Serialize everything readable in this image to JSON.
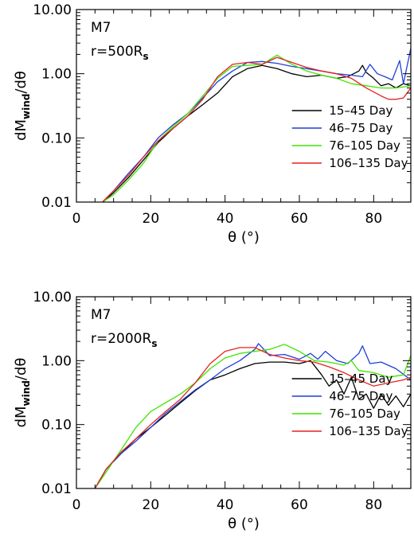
{
  "chart_data": [
    {
      "type": "line",
      "title": "",
      "annotations": {
        "model": "M7",
        "radius_prefix": "r=500R",
        "radius_sub": "s"
      },
      "xlabel": "θ (°)",
      "ylabel_main": "dM",
      "ylabel_sub": "wind",
      "ylabel_tail": "/dθ",
      "xlim": [
        0,
        90
      ],
      "ylim": [
        0.01,
        10
      ],
      "yscale": "log",
      "xticks": [
        0,
        20,
        40,
        60,
        80
      ],
      "yticks": [
        0.01,
        0.1,
        1,
        10
      ],
      "yticklabels": [
        "0.01",
        "0.10",
        "1.00",
        "10.00"
      ],
      "legend_position": "right-center",
      "series": [
        {
          "name": "15–45 Day",
          "color": "#000000",
          "x": [
            7,
            10,
            14,
            18,
            22,
            26,
            30,
            34,
            38,
            42,
            46,
            50,
            54,
            58,
            62,
            66,
            70,
            73,
            76,
            77,
            78,
            80,
            82,
            84,
            86,
            88,
            90
          ],
          "y": [
            0.01,
            0.014,
            0.024,
            0.045,
            0.085,
            0.14,
            0.22,
            0.33,
            0.5,
            0.9,
            1.2,
            1.35,
            1.2,
            1.0,
            0.9,
            0.95,
            0.85,
            0.9,
            1.1,
            1.35,
            1.05,
            0.85,
            0.65,
            0.7,
            0.6,
            0.7,
            0.65
          ]
        },
        {
          "name": "46–75 Day",
          "color": "#1f3fd8",
          "x": [
            7,
            10,
            14,
            18,
            22,
            26,
            30,
            34,
            38,
            42,
            46,
            50,
            54,
            58,
            62,
            66,
            70,
            74,
            77,
            79,
            81,
            83,
            85,
            87,
            88,
            90
          ],
          "y": [
            0.01,
            0.015,
            0.028,
            0.05,
            0.1,
            0.16,
            0.24,
            0.42,
            0.75,
            1.1,
            1.5,
            1.55,
            1.45,
            1.3,
            1.2,
            1.1,
            1.0,
            0.95,
            0.9,
            1.4,
            1.0,
            0.9,
            0.8,
            1.6,
            0.7,
            2.5
          ]
        },
        {
          "name": "76–105 Day",
          "color": "#3ee600",
          "x": [
            7,
            10,
            14,
            18,
            22,
            26,
            30,
            34,
            38,
            42,
            46,
            50,
            54,
            58,
            62,
            66,
            70,
            74,
            78,
            82,
            86,
            90
          ],
          "y": [
            0.01,
            0.013,
            0.022,
            0.04,
            0.09,
            0.15,
            0.24,
            0.45,
            0.85,
            1.3,
            1.35,
            1.4,
            1.95,
            1.4,
            1.1,
            0.95,
            0.85,
            0.7,
            0.65,
            0.6,
            0.6,
            0.65
          ]
        },
        {
          "name": "106–135 Day",
          "color": "#e52222",
          "x": [
            7,
            10,
            14,
            18,
            22,
            26,
            30,
            34,
            38,
            42,
            46,
            50,
            54,
            58,
            62,
            66,
            70,
            74,
            78,
            82,
            84,
            86,
            88,
            90
          ],
          "y": [
            0.01,
            0.015,
            0.026,
            0.05,
            0.09,
            0.14,
            0.22,
            0.4,
            0.9,
            1.4,
            1.5,
            1.4,
            1.8,
            1.5,
            1.25,
            1.1,
            1.0,
            0.85,
            0.6,
            0.45,
            0.4,
            0.4,
            0.42,
            0.6
          ]
        }
      ]
    },
    {
      "type": "line",
      "title": "",
      "annotations": {
        "model": "M7",
        "radius_prefix": "r=2000R",
        "radius_sub": "s"
      },
      "xlabel": "θ (°)",
      "ylabel_main": "dM",
      "ylabel_sub": "wind",
      "ylabel_tail": "/dθ",
      "xlim": [
        0,
        90
      ],
      "ylim": [
        0.01,
        10
      ],
      "yscale": "log",
      "xticks": [
        0,
        20,
        40,
        60,
        80
      ],
      "yticks": [
        0.01,
        0.1,
        1,
        10
      ],
      "yticklabels": [
        "0.01",
        "0.10",
        "1.00",
        "10.00"
      ],
      "legend_position": "right-center",
      "series": [
        {
          "name": "15–45 Day",
          "color": "#000000",
          "x": [
            5,
            8,
            12,
            16,
            20,
            24,
            28,
            32,
            36,
            40,
            44,
            48,
            52,
            56,
            60,
            63,
            66,
            68,
            70,
            72,
            74,
            76,
            78,
            80,
            82,
            84,
            86,
            88,
            90
          ],
          "y": [
            0.01,
            0.02,
            0.035,
            0.06,
            0.09,
            0.14,
            0.22,
            0.34,
            0.5,
            0.6,
            0.75,
            0.9,
            0.95,
            0.95,
            0.9,
            1.0,
            0.6,
            0.4,
            0.5,
            0.3,
            0.55,
            0.25,
            0.3,
            0.18,
            0.3,
            0.2,
            0.28,
            0.19,
            0.3
          ]
        },
        {
          "name": "46–75 Day",
          "color": "#1f3fd8",
          "x": [
            5,
            8,
            12,
            16,
            20,
            24,
            28,
            32,
            36,
            40,
            44,
            48,
            49,
            52,
            56,
            60,
            63,
            65,
            67,
            70,
            73,
            76,
            77,
            79,
            82,
            86,
            90
          ],
          "y": [
            0.01,
            0.02,
            0.035,
            0.055,
            0.09,
            0.15,
            0.23,
            0.35,
            0.5,
            0.75,
            1.0,
            1.5,
            1.85,
            1.2,
            1.25,
            1.05,
            1.3,
            1.05,
            1.4,
            1.0,
            0.9,
            1.3,
            1.7,
            0.9,
            0.95,
            0.75,
            0.5
          ]
        },
        {
          "name": "76–105 Day",
          "color": "#3ee600",
          "x": [
            5,
            8,
            12,
            16,
            20,
            24,
            28,
            32,
            36,
            40,
            44,
            48,
            52,
            56,
            60,
            64,
            68,
            72,
            74,
            76,
            80,
            84,
            88,
            90
          ],
          "y": [
            0.01,
            0.018,
            0.04,
            0.09,
            0.16,
            0.22,
            0.3,
            0.45,
            0.75,
            1.1,
            1.3,
            1.4,
            1.5,
            1.8,
            1.4,
            1.0,
            0.95,
            0.85,
            1.0,
            0.7,
            0.65,
            0.55,
            0.6,
            1.2
          ]
        },
        {
          "name": "106–135 Day",
          "color": "#e52222",
          "x": [
            5,
            8,
            12,
            16,
            20,
            24,
            28,
            32,
            36,
            40,
            44,
            48,
            52,
            56,
            60,
            64,
            68,
            72,
            76,
            80,
            84,
            88,
            90
          ],
          "y": [
            0.01,
            0.02,
            0.037,
            0.06,
            0.1,
            0.16,
            0.25,
            0.45,
            0.9,
            1.4,
            1.6,
            1.6,
            1.25,
            1.1,
            1.0,
            0.95,
            0.8,
            0.65,
            0.5,
            0.4,
            0.45,
            0.5,
            0.55
          ]
        }
      ]
    }
  ]
}
